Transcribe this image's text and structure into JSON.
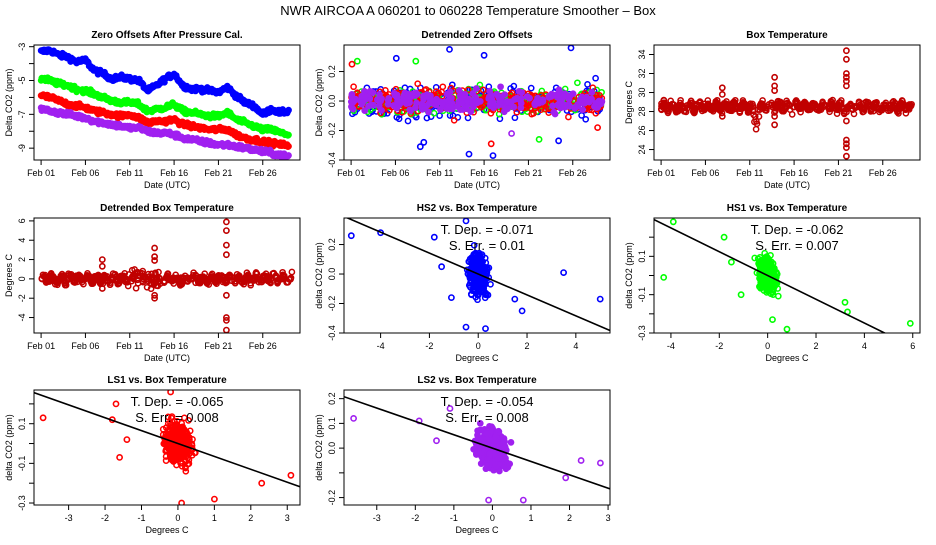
{
  "figure_title": "NWR   AIRCOA A   060201 to 060228   Temperature Smoother – Box",
  "colors": {
    "HS2": "#0000ff",
    "HS1": "#00ff00",
    "LS1": "#ff0000",
    "LS2": "#a020f0",
    "box_temp": "#c00000",
    "fit_line": "#000000"
  },
  "chart_data": [
    {
      "id": "zero-offsets",
      "type": "scatter",
      "title": "Zero Offsets After Pressure Cal.",
      "xlabel": "Date (UTC)",
      "ylabel": "Delta CO2 (ppm)",
      "xlim": [
        -0.8,
        29.2
      ],
      "ylim": [
        -9.7,
        -2.9
      ],
      "x_ticks": [
        0,
        5,
        10,
        15,
        20,
        25
      ],
      "x_tick_labels": [
        "Feb 01",
        "Feb 06",
        "Feb 11",
        "Feb 16",
        "Feb 21",
        "Feb 26"
      ],
      "y_ticks": [
        -3,
        -4,
        -5,
        -6,
        -7,
        -8,
        -9
      ],
      "y_tick_labels": [
        "-3",
        "",
        "-5",
        "",
        "-7",
        "",
        "-9"
      ],
      "grid": false,
      "series": [
        {
          "name": "HS2",
          "color_key": "HS2",
          "x": [
            0,
            1,
            2,
            3,
            4,
            5,
            6,
            7,
            8,
            9,
            10,
            11,
            12,
            13,
            14,
            15,
            16,
            17,
            18,
            19,
            20,
            21,
            22,
            23,
            24,
            25,
            26,
            27,
            28
          ],
          "y": [
            -3.3,
            -3.2,
            -3.5,
            -3.6,
            -3.9,
            -3.8,
            -4.4,
            -4.6,
            -4.9,
            -4.8,
            -4.9,
            -5.0,
            -5.6,
            -5.3,
            -4.9,
            -4.6,
            -5.3,
            -5.5,
            -5.5,
            -5.6,
            -5.7,
            -5.4,
            -5.9,
            -6.3,
            -6.5,
            -7.0,
            -6.7,
            -6.9,
            -6.8
          ]
        },
        {
          "name": "HS1",
          "color_key": "HS1",
          "x": [
            0,
            1,
            2,
            3,
            4,
            5,
            6,
            7,
            8,
            9,
            10,
            11,
            12,
            13,
            14,
            15,
            16,
            17,
            18,
            19,
            20,
            21,
            22,
            23,
            24,
            25,
            26,
            27,
            28
          ],
          "y": [
            -4.9,
            -5.0,
            -5.2,
            -5.3,
            -5.5,
            -5.6,
            -5.8,
            -6.0,
            -6.2,
            -6.3,
            -6.3,
            -6.4,
            -6.8,
            -6.7,
            -6.6,
            -6.4,
            -6.8,
            -6.9,
            -7.0,
            -7.1,
            -7.1,
            -6.9,
            -7.3,
            -7.5,
            -7.7,
            -7.9,
            -7.9,
            -8.1,
            -8.2
          ]
        },
        {
          "name": "LS1",
          "color_key": "LS1",
          "x": [
            0,
            1,
            2,
            3,
            4,
            5,
            6,
            7,
            8,
            9,
            10,
            11,
            12,
            13,
            14,
            15,
            16,
            17,
            18,
            19,
            20,
            21,
            22,
            23,
            24,
            25,
            26,
            27,
            28
          ],
          "y": [
            -5.9,
            -6.0,
            -6.2,
            -6.4,
            -6.5,
            -6.6,
            -6.8,
            -6.9,
            -7.0,
            -7.1,
            -7.0,
            -7.2,
            -7.5,
            -7.4,
            -7.4,
            -7.3,
            -7.6,
            -7.7,
            -7.8,
            -7.9,
            -7.9,
            -7.9,
            -8.2,
            -8.4,
            -8.5,
            -8.6,
            -8.7,
            -8.8,
            -8.8
          ]
        },
        {
          "name": "LS2",
          "color_key": "LS2",
          "x": [
            0,
            1,
            2,
            3,
            4,
            5,
            6,
            7,
            8,
            9,
            10,
            11,
            12,
            13,
            14,
            15,
            16,
            17,
            18,
            19,
            20,
            21,
            22,
            23,
            24,
            25,
            26,
            27,
            28
          ],
          "y": [
            -6.7,
            -6.8,
            -6.9,
            -7.0,
            -7.1,
            -7.2,
            -7.4,
            -7.5,
            -7.6,
            -7.7,
            -7.8,
            -7.8,
            -8.0,
            -8.1,
            -8.1,
            -8.2,
            -8.4,
            -8.5,
            -8.6,
            -8.7,
            -8.8,
            -8.8,
            -8.9,
            -9.0,
            -9.1,
            -9.2,
            -9.3,
            -9.4,
            -9.5
          ]
        }
      ]
    },
    {
      "id": "detrended-zero-offsets",
      "type": "scatter",
      "title": "Detrended Zero Offsets",
      "xlabel": "Date (UTC)",
      "ylabel": "Delta CO2 (ppm)",
      "xlim": [
        -0.8,
        29.2
      ],
      "ylim": [
        -0.4,
        0.38
      ],
      "x_ticks": [
        0,
        5,
        10,
        15,
        20,
        25
      ],
      "x_tick_labels": [
        "Feb 01",
        "Feb 06",
        "Feb 11",
        "Feb 16",
        "Feb 21",
        "Feb 26"
      ],
      "y_ticks": [
        -0.4,
        -0.2,
        0.0,
        0.2
      ],
      "y_tick_labels": [
        "-0.4",
        "-0.2",
        "0.0",
        "0.2"
      ],
      "grid": false,
      "spread_sd": {
        "HS2": 0.09,
        "HS1": 0.07,
        "LS1": 0.07,
        "LS2": 0.06
      },
      "outliers": [
        {
          "series": "HS2",
          "x": 11.1,
          "y": 0.35
        },
        {
          "series": "HS2",
          "x": 24.8,
          "y": 0.36
        },
        {
          "series": "HS2",
          "x": 5.1,
          "y": 0.29
        },
        {
          "series": "HS2",
          "x": 15.0,
          "y": 0.31
        },
        {
          "series": "HS2",
          "x": 7.8,
          "y": -0.31
        },
        {
          "series": "HS2",
          "x": 8.2,
          "y": -0.28
        },
        {
          "series": "HS2",
          "x": 13.3,
          "y": -0.36
        },
        {
          "series": "HS2",
          "x": 16.0,
          "y": -0.37
        },
        {
          "series": "HS2",
          "x": 23.4,
          "y": -0.27
        },
        {
          "series": "HS1",
          "x": 0.7,
          "y": 0.27
        },
        {
          "series": "HS1",
          "x": 7.3,
          "y": 0.27
        },
        {
          "series": "HS1",
          "x": 21.2,
          "y": -0.26
        },
        {
          "series": "LS1",
          "x": 0.1,
          "y": 0.25
        },
        {
          "series": "LS1",
          "x": 15.8,
          "y": -0.29
        },
        {
          "series": "LS1",
          "x": 27.8,
          "y": -0.18
        },
        {
          "series": "LS2",
          "x": 18.1,
          "y": -0.22
        }
      ]
    },
    {
      "id": "box-temperature",
      "type": "scatter",
      "title": "Box Temperature",
      "xlabel": "Date (UTC)",
      "ylabel": "Degrees C",
      "xlim": [
        -0.8,
        29.2
      ],
      "ylim": [
        22.9,
        35.0
      ],
      "x_ticks": [
        0,
        5,
        10,
        15,
        20,
        25
      ],
      "x_tick_labels": [
        "Feb 01",
        "Feb 06",
        "Feb 11",
        "Feb 16",
        "Feb 21",
        "Feb 26"
      ],
      "y_ticks": [
        24,
        26,
        28,
        30,
        32,
        34
      ],
      "y_tick_labels": [
        "24",
        "26",
        "28",
        "30",
        "32",
        "34"
      ],
      "grid": false,
      "baseline": 28.5,
      "daily_amplitude": 0.6,
      "dip": {
        "x": 10.7,
        "min": 25.4
      },
      "spikes": [
        {
          "x": 6.9,
          "values": [
            30.5,
            29.8,
            27.5
          ]
        },
        {
          "x": 12.8,
          "values": [
            31.6,
            30.7,
            30.2,
            27.5,
            26.6
          ]
        },
        {
          "x": 20.9,
          "values": [
            34.4,
            33.5,
            32.0,
            31.6,
            31.2,
            30.7,
            27.0,
            25.0,
            24.6,
            24.2,
            23.3
          ]
        }
      ]
    },
    {
      "id": "detrended-box-temperature",
      "type": "scatter",
      "title": "Detrended Box Temperature",
      "xlabel": "Date (UTC)",
      "ylabel": "Degrees C",
      "xlim": [
        -0.8,
        29.2
      ],
      "ylim": [
        -5.6,
        6.3
      ],
      "x_ticks": [
        0,
        5,
        10,
        15,
        20,
        25
      ],
      "x_tick_labels": [
        "Feb 01",
        "Feb 06",
        "Feb 11",
        "Feb 16",
        "Feb 21",
        "Feb 26"
      ],
      "y_ticks": [
        -4,
        -2,
        0,
        2,
        4,
        6
      ],
      "y_tick_labels": [
        "-4",
        "-2",
        "0",
        "2",
        "4",
        "6"
      ],
      "grid": false,
      "daily_amplitude": 0.5,
      "spikes": [
        {
          "x": 6.9,
          "values": [
            2.0,
            1.3,
            -1.0
          ]
        },
        {
          "x": 12.8,
          "values": [
            3.2,
            2.3,
            1.9,
            -1.7,
            -2.0
          ]
        },
        {
          "x": 20.9,
          "values": [
            5.9,
            5.0,
            3.5,
            2.5,
            -1.7,
            -4.0,
            -4.3,
            -5.3
          ]
        }
      ]
    },
    {
      "id": "hs2-vs-box-temp",
      "type": "scatter",
      "title": "HS2 vs. Box Temperature",
      "series_name": "HS2",
      "xlabel": "Degrees C",
      "ylabel": "delta CO2 (ppm)",
      "xlim": [
        -5.5,
        5.4
      ],
      "ylim": [
        -0.4,
        0.38
      ],
      "x_ticks": [
        -4,
        -2,
        0,
        2,
        4
      ],
      "x_tick_labels": [
        "-4",
        "-2",
        "0",
        "2",
        "4"
      ],
      "y_ticks": [
        -0.4,
        -0.2,
        0.0,
        0.2
      ],
      "y_tick_labels": [
        "-0.4",
        "-0.2",
        "0.0",
        "0.2"
      ],
      "slope": -0.071,
      "intercept": 0.0,
      "annotation": [
        "T. Dep. =  -0.071",
        "S. Err. =  0.01"
      ],
      "cluster_sd": {
        "x": 0.3,
        "y": 0.11
      },
      "outliers": [
        [
          -5.2,
          0.26
        ],
        [
          -4.0,
          0.28
        ],
        [
          -1.8,
          0.25
        ],
        [
          -1.5,
          0.05
        ],
        [
          -1.1,
          -0.16
        ],
        [
          3.5,
          0.01
        ],
        [
          5.0,
          -0.17
        ],
        [
          1.8,
          -0.25
        ],
        [
          1.5,
          -0.17
        ],
        [
          -0.5,
          0.36
        ],
        [
          -0.5,
          -0.36
        ],
        [
          0.3,
          -0.37
        ]
      ]
    },
    {
      "id": "hs1-vs-box-temp",
      "type": "scatter",
      "title": "HS1 vs. Box Temperature",
      "series_name": "HS1",
      "xlabel": "Degrees C",
      "ylabel": "delta CO2 (ppm)",
      "xlim": [
        -4.7,
        6.3
      ],
      "ylim": [
        -0.3,
        0.3
      ],
      "x_ticks": [
        -4,
        -2,
        0,
        2,
        4,
        6
      ],
      "x_tick_labels": [
        "-4",
        "-2",
        "0",
        "2",
        "4",
        "6"
      ],
      "y_ticks": [
        -0.3,
        -0.2,
        -0.1,
        0.0,
        0.1,
        0.2
      ],
      "y_tick_labels": [
        "-0.3",
        "",
        "-0.1",
        "",
        "0.1",
        ""
      ],
      "slope": -0.062,
      "intercept": 0.0,
      "annotation": [
        "T. Dep. =  -0.062",
        "S. Err. =  0.007"
      ],
      "cluster_sd": {
        "x": 0.3,
        "y": 0.07
      },
      "outliers": [
        [
          -3.9,
          0.28
        ],
        [
          -4.3,
          -0.01
        ],
        [
          -1.8,
          0.2
        ],
        [
          -1.5,
          0.07
        ],
        [
          -1.1,
          -0.1
        ],
        [
          3.2,
          -0.14
        ],
        [
          3.3,
          -0.19
        ],
        [
          5.9,
          -0.25
        ],
        [
          0.8,
          -0.28
        ],
        [
          0.2,
          -0.23
        ]
      ]
    },
    {
      "id": "ls1-vs-box-temp",
      "type": "scatter",
      "title": "LS1 vs. Box Temperature",
      "series_name": "LS1",
      "xlabel": "Degrees C",
      "ylabel": "delta CO2 (ppm)",
      "xlim": [
        -3.95,
        3.35
      ],
      "ylim": [
        -0.31,
        0.27
      ],
      "x_ticks": [
        -3,
        -2,
        -1,
        0,
        1,
        2,
        3
      ],
      "x_tick_labels": [
        "-3",
        "-2",
        "-1",
        "0",
        "1",
        "2",
        "3"
      ],
      "y_ticks": [
        -0.3,
        -0.2,
        -0.1,
        0.0,
        0.1,
        0.2
      ],
      "y_tick_labels": [
        "-0.3",
        "",
        "-0.1",
        "",
        "0.1",
        ""
      ],
      "slope": -0.065,
      "intercept": 0.0,
      "annotation": [
        "T. Dep. =  -0.065",
        "S. Err. =  0.008"
      ],
      "cluster_sd": {
        "x": 0.3,
        "y": 0.08
      },
      "outliers": [
        [
          -3.7,
          0.13
        ],
        [
          -1.7,
          0.2
        ],
        [
          -1.8,
          0.12
        ],
        [
          -1.6,
          -0.07
        ],
        [
          -1.4,
          0.02
        ],
        [
          3.1,
          -0.16
        ],
        [
          2.3,
          -0.2
        ],
        [
          1.0,
          -0.28
        ],
        [
          0.1,
          -0.3
        ],
        [
          -0.2,
          0.26
        ]
      ]
    },
    {
      "id": "ls2-vs-box-temp",
      "type": "scatter",
      "title": "LS2 vs. Box Temperature",
      "series_name": "LS2",
      "xlabel": "Degrees C",
      "ylabel": "delta CO2 (ppm)",
      "xlim": [
        -3.85,
        3.05
      ],
      "ylim": [
        -0.23,
        0.235
      ],
      "x_ticks": [
        -3,
        -2,
        -1,
        0,
        1,
        2,
        3
      ],
      "x_tick_labels": [
        "-3",
        "-2",
        "-1",
        "0",
        "1",
        "2",
        "3"
      ],
      "y_ticks": [
        -0.2,
        -0.1,
        0.0,
        0.1,
        0.2
      ],
      "y_tick_labels": [
        "-0.2",
        "",
        "0.0",
        "0.1",
        "0.2"
      ],
      "slope": -0.054,
      "intercept": 0.0,
      "annotation": [
        "T. Dep. =  -0.054",
        "S. Err. =  0.008"
      ],
      "cluster_sd": {
        "x": 0.3,
        "y": 0.06
      },
      "outliers": [
        [
          -3.6,
          0.12
        ],
        [
          -1.9,
          0.11
        ],
        [
          -1.45,
          0.03
        ],
        [
          2.3,
          -0.05
        ],
        [
          2.8,
          -0.06
        ],
        [
          1.9,
          -0.12
        ],
        [
          -0.1,
          -0.21
        ],
        [
          0.8,
          -0.21
        ],
        [
          -1.1,
          0.16
        ]
      ]
    }
  ]
}
